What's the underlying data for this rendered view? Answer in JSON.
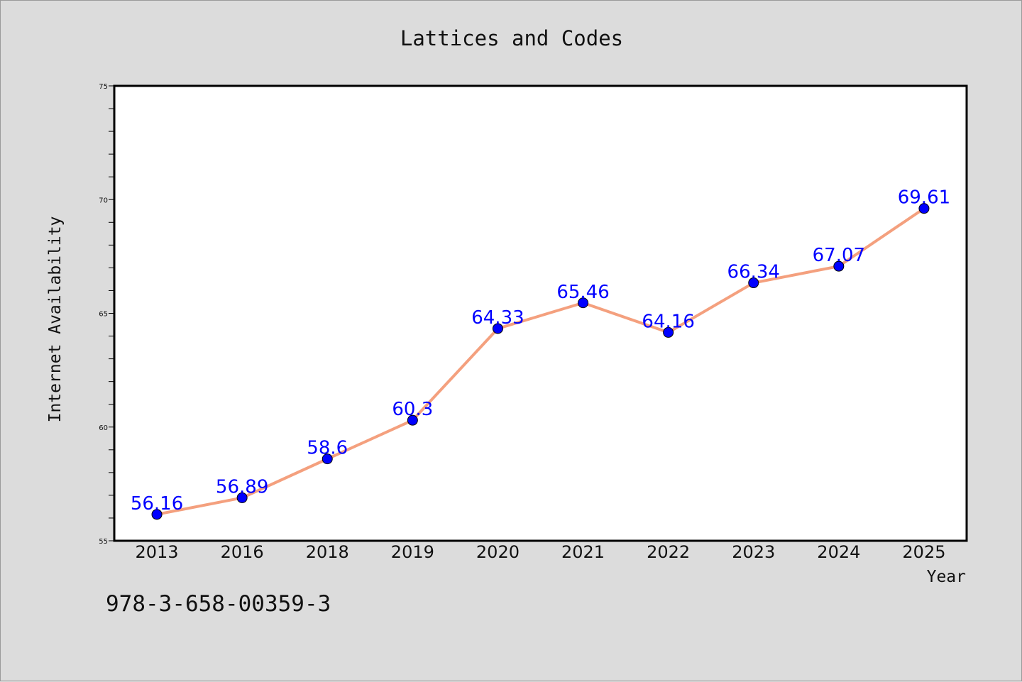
{
  "chart_data": {
    "type": "line",
    "title": "Lattices and Codes",
    "xlabel": "Year",
    "ylabel": "Internet Availability",
    "categories": [
      "2013",
      "2016",
      "2018",
      "2019",
      "2020",
      "2021",
      "2022",
      "2023",
      "2024",
      "2025"
    ],
    "series": [
      {
        "values": [
          56.16,
          56.89,
          58.6,
          60.3,
          64.33,
          65.46,
          64.16,
          66.34,
          67.07,
          69.61
        ],
        "labels": [
          "56.16",
          "56.89",
          "58.6",
          "60.3",
          "64.33",
          "65.46",
          "64.16",
          "66.34",
          "67.07",
          "69.61"
        ],
        "line_color": "#f4a07e",
        "marker_color": "#0000ff"
      }
    ],
    "ylim": [
      55,
      75
    ],
    "yticks": [
      "55",
      "60",
      "65",
      "70",
      "75"
    ],
    "grid": false,
    "legend": "none"
  },
  "footer": {
    "isbn": "978-3-658-00359-3"
  },
  "colors": {
    "background": "#dcdcdc",
    "plot_background": "#ffffff",
    "data_label": "#0000ff"
  }
}
